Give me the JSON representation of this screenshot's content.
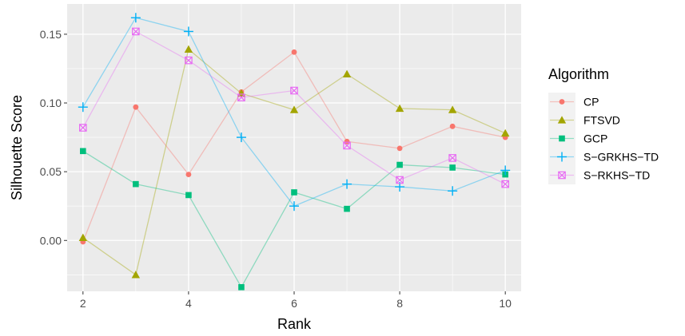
{
  "chart_data": {
    "type": "line",
    "xlabel": "Rank",
    "ylabel": "Silhouette Score",
    "x": [
      2,
      3,
      4,
      5,
      6,
      7,
      8,
      9,
      10
    ],
    "xlim": [
      1.7,
      10.3
    ],
    "ylim": [
      -0.037,
      0.172
    ],
    "x_ticks": [
      "2",
      "4",
      "6",
      "8",
      "10"
    ],
    "y_ticks": [
      "0.00",
      "0.05",
      "0.10",
      "0.15"
    ],
    "grid": true,
    "legend": {
      "title": "Algorithm",
      "placement": "right"
    },
    "series": [
      {
        "name": "CP",
        "color": "#F8766D",
        "marker": "circle",
        "values": [
          -0.001,
          0.097,
          0.048,
          0.108,
          0.137,
          0.072,
          0.067,
          0.083,
          0.075
        ]
      },
      {
        "name": "FTSVD",
        "color": "#A3A500",
        "marker": "triangle",
        "values": [
          0.002,
          -0.025,
          0.139,
          0.107,
          0.095,
          0.121,
          0.096,
          0.095,
          0.078
        ]
      },
      {
        "name": "GCP",
        "color": "#00BF7D",
        "marker": "square",
        "values": [
          0.065,
          0.041,
          0.033,
          -0.034,
          0.035,
          0.023,
          0.055,
          0.053,
          0.048
        ]
      },
      {
        "name": "S−GRKHS−TD",
        "color": "#00B0F6",
        "marker": "plus",
        "values": [
          0.097,
          0.162,
          0.152,
          0.075,
          0.025,
          0.041,
          0.039,
          0.036,
          0.051
        ]
      },
      {
        "name": "S−RKHS−TD",
        "color": "#E76BF3",
        "marker": "boxx",
        "values": [
          0.082,
          0.152,
          0.131,
          0.104,
          0.109,
          0.069,
          0.044,
          0.06,
          0.041
        ]
      }
    ]
  }
}
